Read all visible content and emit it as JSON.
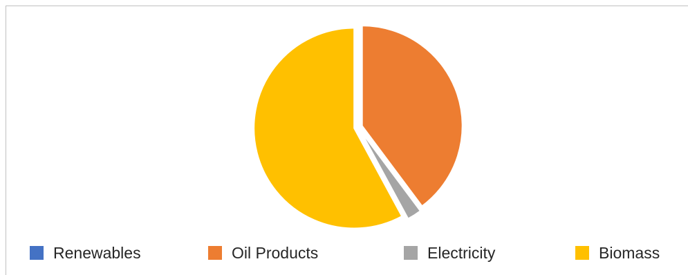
{
  "chart_data": {
    "type": "pie",
    "title": "",
    "categories": [
      "Renewables",
      "Oil Products",
      "Electricity",
      "Biomass"
    ],
    "values": [
      0.0,
      39.8,
      2.3,
      57.9
    ],
    "unit": "%",
    "exploded": true,
    "legend_position": "bottom",
    "colors": [
      "#4472C4",
      "#ED7D31",
      "#A5A5A5",
      "#FFC000"
    ]
  }
}
